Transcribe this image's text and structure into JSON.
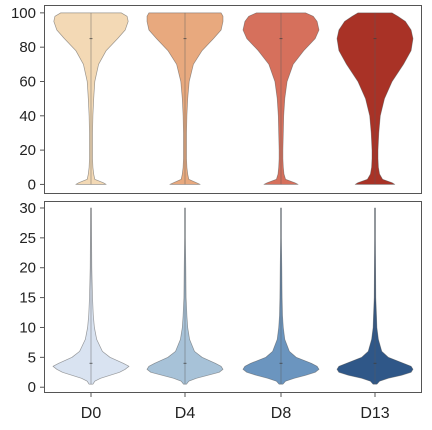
{
  "chart_data": [
    {
      "type": "violin",
      "panel": "top",
      "categories": [
        "D0",
        "D4",
        "D8",
        "D13"
      ],
      "ylim": [
        -5,
        104
      ],
      "yticks": [
        0,
        20,
        40,
        60,
        80,
        100
      ],
      "tick_labels": [
        "0",
        "20",
        "40",
        "60",
        "80",
        "100"
      ],
      "colors": [
        "#f3d9b5",
        "#e8a97e",
        "#d6705c",
        "#a93226"
      ],
      "median": [
        85,
        85,
        85,
        85
      ],
      "density_profile": {
        "y": [
          0,
          1,
          3,
          6,
          10,
          15,
          20,
          30,
          40,
          50,
          60,
          70,
          78,
          85,
          90,
          95,
          98,
          100
        ],
        "width": [
          [
            0.4,
            0.32,
            0.1,
            0.07,
            0.05,
            0.04,
            0.04,
            0.04,
            0.05,
            0.07,
            0.1,
            0.2,
            0.4,
            0.7,
            0.9,
            0.98,
            0.95,
            0.8
          ],
          [
            0.4,
            0.3,
            0.1,
            0.07,
            0.05,
            0.04,
            0.04,
            0.04,
            0.05,
            0.07,
            0.11,
            0.22,
            0.45,
            0.75,
            0.95,
            1.0,
            1.0,
            0.95
          ],
          [
            0.45,
            0.36,
            0.12,
            0.08,
            0.06,
            0.05,
            0.05,
            0.06,
            0.07,
            0.1,
            0.16,
            0.32,
            0.6,
            0.9,
            1.0,
            0.95,
            0.85,
            0.65
          ],
          [
            0.52,
            0.45,
            0.2,
            0.12,
            0.09,
            0.08,
            0.08,
            0.1,
            0.14,
            0.25,
            0.45,
            0.75,
            0.95,
            1.0,
            0.95,
            0.8,
            0.6,
            0.45
          ]
        ]
      }
    },
    {
      "type": "violin",
      "panel": "bottom",
      "categories": [
        "D0",
        "D4",
        "D8",
        "D13"
      ],
      "ylim": [
        -0.8,
        31
      ],
      "yticks": [
        0,
        5,
        10,
        15,
        20,
        25,
        30
      ],
      "tick_labels": [
        "0",
        "5",
        "10",
        "15",
        "20",
        "25",
        "30"
      ],
      "xlabels": [
        "D0",
        "D4",
        "D8",
        "D13"
      ],
      "colors": [
        "#d9e3f1",
        "#a7c2d8",
        "#6b95bf",
        "#2f5788"
      ],
      "median": [
        4,
        4,
        4,
        4
      ],
      "density_profile": {
        "y": [
          0.5,
          1,
          1.5,
          2,
          2.5,
          3,
          3.5,
          4,
          5,
          6,
          8,
          10,
          12,
          15,
          20,
          25,
          30
        ],
        "width": [
          [
            0.05,
            0.1,
            0.25,
            0.5,
            0.75,
            0.9,
            1.0,
            0.85,
            0.5,
            0.3,
            0.15,
            0.09,
            0.06,
            0.04,
            0.02,
            0.015,
            0.01
          ],
          [
            0.04,
            0.1,
            0.3,
            0.6,
            0.9,
            1.0,
            0.95,
            0.8,
            0.45,
            0.25,
            0.12,
            0.07,
            0.05,
            0.03,
            0.02,
            0.01,
            0.01
          ],
          [
            0.05,
            0.12,
            0.35,
            0.65,
            0.9,
            1.0,
            0.95,
            0.8,
            0.4,
            0.22,
            0.1,
            0.06,
            0.04,
            0.03,
            0.02,
            0.01,
            0.01
          ],
          [
            0.05,
            0.12,
            0.35,
            0.7,
            0.95,
            1.0,
            0.95,
            0.75,
            0.35,
            0.18,
            0.09,
            0.05,
            0.04,
            0.02,
            0.015,
            0.01,
            0.01
          ]
        ]
      }
    }
  ]
}
